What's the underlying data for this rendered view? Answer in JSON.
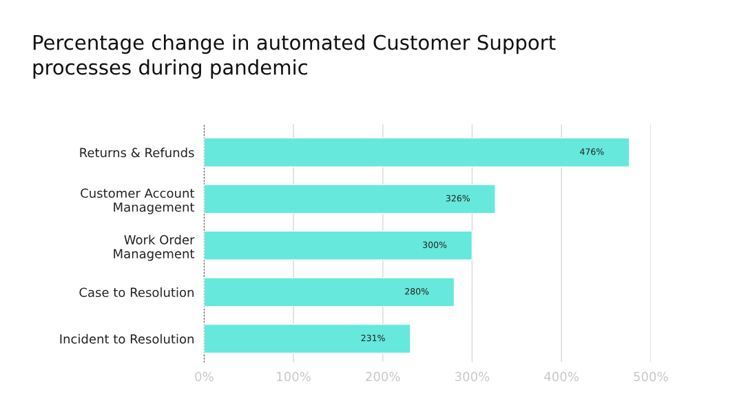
{
  "chart_data": {
    "type": "bar",
    "orientation": "horizontal",
    "title": "Percentage change in automated Customer Support\nprocesses during pandemic",
    "categories": [
      "Returns & Refunds",
      "Customer Account\nManagement",
      "Work Order\nManagement",
      "Case to Resolution",
      "Incident to Resolution"
    ],
    "values": [
      476,
      326,
      300,
      280,
      231
    ],
    "value_labels": [
      "476%",
      "326%",
      "300%",
      "280%",
      "231%"
    ],
    "color": "#66e8dc",
    "xlim": [
      0,
      500
    ],
    "xticks": [
      {
        "value": 0,
        "label": "0%"
      },
      {
        "value": 100,
        "label": "100%"
      },
      {
        "value": 200,
        "label": "200%"
      },
      {
        "value": 300,
        "label": "300%"
      },
      {
        "value": 400,
        "label": "400%"
      },
      {
        "value": 500,
        "label": "500%"
      }
    ],
    "grid": "x"
  }
}
